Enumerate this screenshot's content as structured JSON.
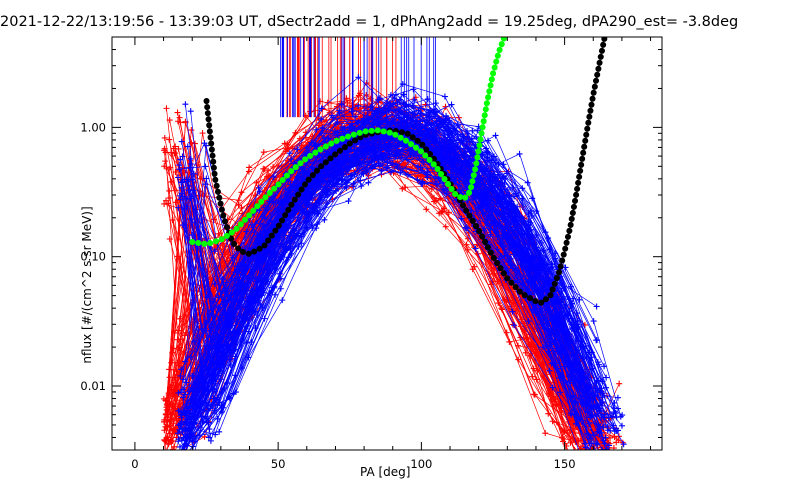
{
  "chart_data": {
    "type": "line",
    "title": "2021-12-22/13:19:56 - 13:39:03 UT, dSectr2add = 1, dPhAng2add = 19.25deg, dPA290_est=  -3.8deg",
    "xlabel": "PA [deg]",
    "ylabel": "nflux [#/(cm^2 s sr MeV)]",
    "xlim": [
      -8,
      184
    ],
    "ylim": [
      0.0032,
      5.0
    ],
    "yscale": "log",
    "x_ticks": [
      0,
      50,
      100,
      150
    ],
    "y_ticks": [
      {
        "value": 0.01,
        "label": "0.01"
      },
      {
        "value": 0.1,
        "label": "0.10"
      },
      {
        "value": 1.0,
        "label": "1.00"
      }
    ],
    "grid": false,
    "legend": "none",
    "colors": {
      "red": "#ff0000",
      "blue": "#0000ff",
      "black": "#000000",
      "green": "#00ff00"
    },
    "series": [
      {
        "color": "black",
        "style": "thick-dots",
        "x": [
          25,
          28,
          31,
          34,
          37,
          40,
          45,
          50,
          55,
          60,
          65,
          70,
          75,
          80,
          85,
          90,
          95,
          100,
          105,
          110,
          115,
          120,
          125,
          130,
          135,
          140,
          142,
          145,
          148,
          150,
          152,
          154,
          156,
          158,
          160,
          162,
          164
        ],
        "y": [
          1.6,
          0.4,
          0.2,
          0.13,
          0.11,
          0.105,
          0.12,
          0.17,
          0.26,
          0.38,
          0.5,
          0.62,
          0.75,
          0.87,
          0.92,
          0.95,
          0.9,
          0.75,
          0.55,
          0.37,
          0.24,
          0.16,
          0.1,
          0.068,
          0.052,
          0.045,
          0.044,
          0.05,
          0.075,
          0.11,
          0.17,
          0.3,
          0.55,
          1.0,
          1.8,
          3.0,
          5.0
        ]
      },
      {
        "color": "green",
        "style": "thick-dots",
        "x": [
          20,
          25,
          30,
          35,
          40,
          45,
          50,
          55,
          60,
          65,
          70,
          75,
          80,
          85,
          90,
          95,
          100,
          105,
          108,
          112,
          115,
          117,
          119,
          121,
          123,
          125,
          127,
          129
        ],
        "y": [
          0.13,
          0.125,
          0.135,
          0.16,
          0.21,
          0.28,
          0.36,
          0.47,
          0.58,
          0.68,
          0.78,
          0.86,
          0.93,
          0.95,
          0.9,
          0.78,
          0.65,
          0.5,
          0.4,
          0.3,
          0.28,
          0.32,
          0.5,
          0.9,
          1.6,
          2.6,
          3.8,
          5.0
        ]
      }
    ],
    "scatter_clouds": [
      {
        "color": "red",
        "marker": "+",
        "role": "measured spectra at PA 10-170 deg"
      },
      {
        "color": "blue",
        "marker": "+",
        "role": "measured spectra at PA 15-172 deg"
      }
    ]
  }
}
